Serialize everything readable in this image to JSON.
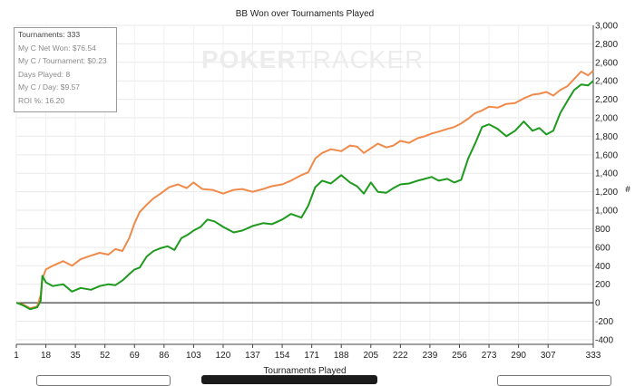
{
  "chart_data": {
    "type": "line",
    "title": "BB Won over Tournaments Played",
    "xlabel": "Tournaments Played",
    "ylabel": "#",
    "xlim": [
      1,
      333
    ],
    "ylim": [
      -450,
      3000
    ],
    "x_ticks": [
      1,
      18,
      35,
      52,
      69,
      86,
      103,
      120,
      137,
      154,
      171,
      188,
      205,
      222,
      239,
      256,
      273,
      290,
      307,
      333
    ],
    "y_ticks": [
      -400,
      -200,
      0,
      200,
      400,
      600,
      800,
      1000,
      1200,
      1400,
      1600,
      1800,
      2000,
      2200,
      2400,
      2600,
      2800,
      3000
    ],
    "y_tick_labels": [
      "-400",
      "-200",
      "0",
      "200",
      "400",
      "600",
      "800",
      "1,000",
      "1,200",
      "1,400",
      "1,600",
      "1,800",
      "2,000",
      "2,200",
      "2,400",
      "2,600",
      "2,800",
      "3,000"
    ],
    "grid": true,
    "series": [
      {
        "color": "#f08a4b",
        "points": [
          [
            1,
            0
          ],
          [
            5,
            -20
          ],
          [
            9,
            -60
          ],
          [
            13,
            -40
          ],
          [
            15,
            80
          ],
          [
            16,
            260
          ],
          [
            18,
            360
          ],
          [
            22,
            400
          ],
          [
            28,
            450
          ],
          [
            33,
            400
          ],
          [
            38,
            470
          ],
          [
            44,
            510
          ],
          [
            49,
            540
          ],
          [
            54,
            520
          ],
          [
            58,
            580
          ],
          [
            62,
            560
          ],
          [
            66,
            700
          ],
          [
            69,
            860
          ],
          [
            72,
            980
          ],
          [
            76,
            1060
          ],
          [
            80,
            1130
          ],
          [
            84,
            1180
          ],
          [
            89,
            1250
          ],
          [
            94,
            1280
          ],
          [
            99,
            1240
          ],
          [
            103,
            1300
          ],
          [
            108,
            1230
          ],
          [
            114,
            1220
          ],
          [
            120,
            1180
          ],
          [
            126,
            1220
          ],
          [
            131,
            1230
          ],
          [
            137,
            1200
          ],
          [
            143,
            1230
          ],
          [
            148,
            1260
          ],
          [
            154,
            1280
          ],
          [
            159,
            1320
          ],
          [
            165,
            1380
          ],
          [
            169,
            1410
          ],
          [
            173,
            1560
          ],
          [
            177,
            1620
          ],
          [
            182,
            1660
          ],
          [
            188,
            1640
          ],
          [
            193,
            1700
          ],
          [
            197,
            1690
          ],
          [
            201,
            1620
          ],
          [
            205,
            1670
          ],
          [
            209,
            1720
          ],
          [
            214,
            1680
          ],
          [
            218,
            1700
          ],
          [
            222,
            1750
          ],
          [
            227,
            1730
          ],
          [
            232,
            1780
          ],
          [
            236,
            1800
          ],
          [
            240,
            1830
          ],
          [
            244,
            1850
          ],
          [
            249,
            1880
          ],
          [
            253,
            1900
          ],
          [
            257,
            1940
          ],
          [
            261,
            1990
          ],
          [
            265,
            2050
          ],
          [
            269,
            2080
          ],
          [
            273,
            2120
          ],
          [
            278,
            2110
          ],
          [
            283,
            2150
          ],
          [
            288,
            2160
          ],
          [
            293,
            2210
          ],
          [
            298,
            2250
          ],
          [
            302,
            2260
          ],
          [
            306,
            2280
          ],
          [
            310,
            2240
          ],
          [
            314,
            2300
          ],
          [
            318,
            2340
          ],
          [
            322,
            2420
          ],
          [
            326,
            2500
          ],
          [
            330,
            2460
          ],
          [
            333,
            2510
          ]
        ]
      },
      {
        "color": "#1e9a1e",
        "points": [
          [
            1,
            0
          ],
          [
            5,
            -30
          ],
          [
            9,
            -70
          ],
          [
            13,
            -50
          ],
          [
            15,
            20
          ],
          [
            16,
            290
          ],
          [
            18,
            220
          ],
          [
            22,
            180
          ],
          [
            28,
            200
          ],
          [
            33,
            120
          ],
          [
            38,
            160
          ],
          [
            44,
            140
          ],
          [
            49,
            180
          ],
          [
            54,
            200
          ],
          [
            58,
            190
          ],
          [
            62,
            240
          ],
          [
            66,
            310
          ],
          [
            69,
            360
          ],
          [
            72,
            380
          ],
          [
            76,
            500
          ],
          [
            80,
            560
          ],
          [
            84,
            590
          ],
          [
            88,
            610
          ],
          [
            92,
            570
          ],
          [
            96,
            700
          ],
          [
            100,
            740
          ],
          [
            103,
            780
          ],
          [
            107,
            820
          ],
          [
            111,
            900
          ],
          [
            115,
            880
          ],
          [
            120,
            820
          ],
          [
            126,
            760
          ],
          [
            131,
            780
          ],
          [
            137,
            830
          ],
          [
            143,
            860
          ],
          [
            148,
            850
          ],
          [
            154,
            900
          ],
          [
            159,
            960
          ],
          [
            165,
            920
          ],
          [
            169,
            1050
          ],
          [
            173,
            1250
          ],
          [
            177,
            1320
          ],
          [
            182,
            1290
          ],
          [
            188,
            1380
          ],
          [
            193,
            1300
          ],
          [
            197,
            1260
          ],
          [
            201,
            1180
          ],
          [
            205,
            1300
          ],
          [
            209,
            1200
          ],
          [
            214,
            1190
          ],
          [
            218,
            1240
          ],
          [
            222,
            1280
          ],
          [
            227,
            1290
          ],
          [
            232,
            1320
          ],
          [
            236,
            1340
          ],
          [
            240,
            1360
          ],
          [
            244,
            1320
          ],
          [
            249,
            1340
          ],
          [
            253,
            1300
          ],
          [
            257,
            1330
          ],
          [
            261,
            1560
          ],
          [
            265,
            1720
          ],
          [
            269,
            1900
          ],
          [
            273,
            1930
          ],
          [
            278,
            1880
          ],
          [
            283,
            1800
          ],
          [
            288,
            1860
          ],
          [
            293,
            1960
          ],
          [
            298,
            1860
          ],
          [
            302,
            1890
          ],
          [
            306,
            1820
          ],
          [
            310,
            1860
          ],
          [
            314,
            2050
          ],
          [
            318,
            2180
          ],
          [
            322,
            2300
          ],
          [
            326,
            2360
          ],
          [
            330,
            2350
          ],
          [
            333,
            2400
          ]
        ]
      }
    ]
  },
  "stats": {
    "tournaments": "Tournaments: 333",
    "net_won": "My C Net Won: $76.54",
    "per_tournament": "My C / Tournament: $0.23",
    "days_played": "Days Played: 8",
    "per_day": "My C / Day: $9.57",
    "roi": "ROI %: 16.20"
  },
  "watermark": {
    "part1": "POKER",
    "part2": "TRACKER"
  }
}
